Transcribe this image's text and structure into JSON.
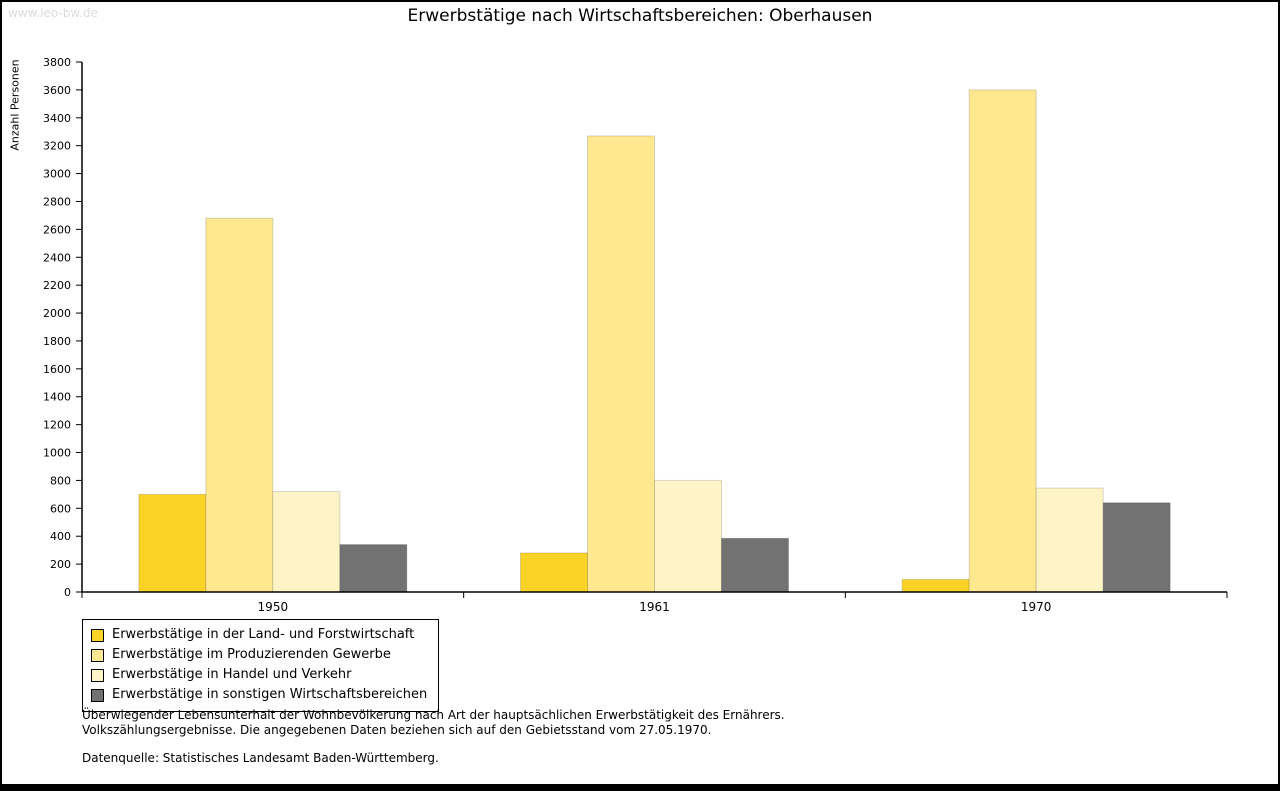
{
  "watermark": "www.leo-bw.de",
  "chart_data": {
    "type": "bar",
    "title": "Erwerbstätige nach Wirtschaftsbereichen: Oberhausen",
    "xlabel": "",
    "ylabel": "Anzahl Personen",
    "categories": [
      "1950",
      "1961",
      "1970"
    ],
    "series": [
      {
        "name": "Erwerbstätige in der Land- und Forstwirtschaft",
        "color": "#FBD327",
        "values": [
          700,
          280,
          90
        ]
      },
      {
        "name": "Erwerbstätige im Produzierenden Gewerbe",
        "color": "#FFE88F",
        "values": [
          2680,
          3270,
          3600
        ]
      },
      {
        "name": "Erwerbstätige in Handel und Verkehr",
        "color": "#FFF4C6",
        "values": [
          720,
          800,
          745
        ]
      },
      {
        "name": "Erwerbstätige in sonstigen Wirtschaftsbereichen",
        "color": "#727272",
        "values": [
          340,
          385,
          640
        ]
      }
    ],
    "ylim": [
      0,
      3800
    ],
    "ytick_step": 200,
    "grid": false,
    "legend_position": "bottom-left"
  },
  "footnotes": {
    "line1": "Überwiegender Lebensunterhalt der Wohnbevölkerung nach Art der hauptsächlichen Erwerbstätigkeit des Ernährers.",
    "line2": "Volkszählungsergebnisse. Die angegebenen Daten beziehen sich auf den Gebietsstand vom 27.05.1970.",
    "source": "Datenquelle: Statistisches Landesamt Baden-Württemberg."
  }
}
